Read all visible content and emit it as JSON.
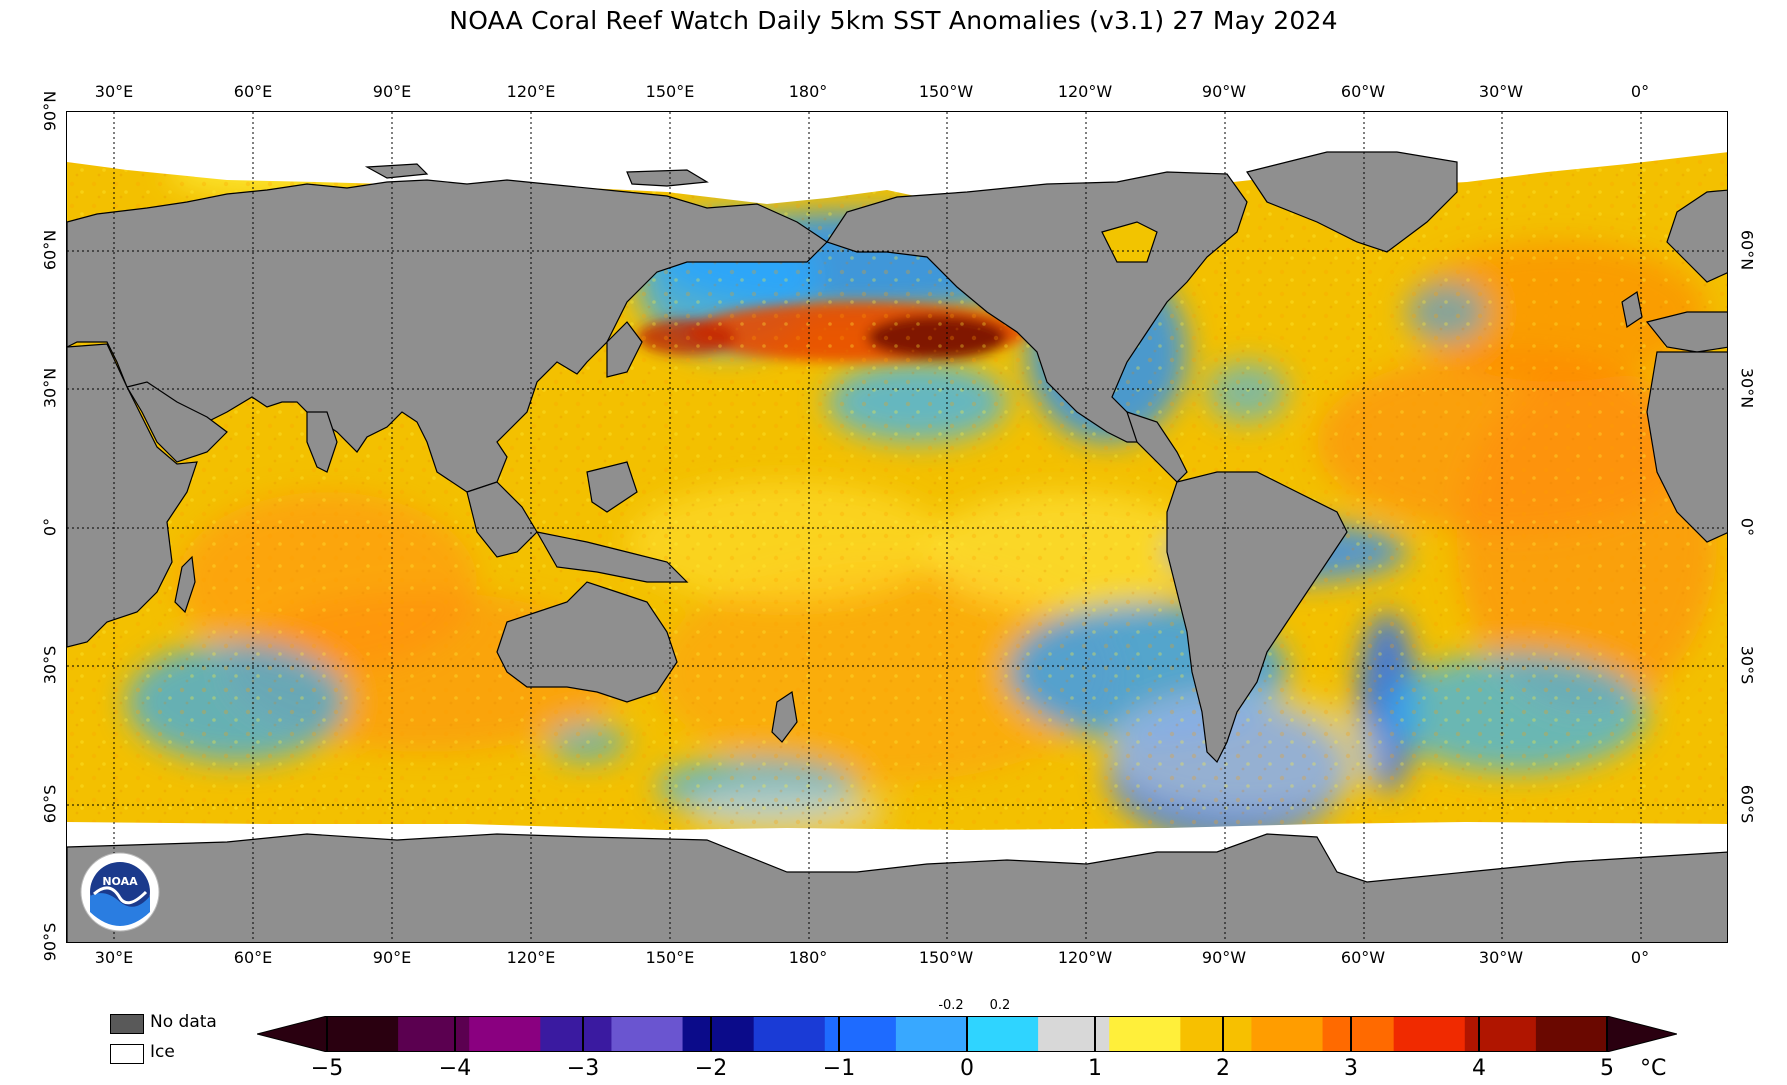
{
  "title": "NOAA Coral Reef Watch Daily 5km SST Anomalies  (v3.1)   27 May 2024",
  "lon_labels": [
    "30°E",
    "60°E",
    "90°E",
    "120°E",
    "150°E",
    "180°",
    "150°W",
    "120°W",
    "90°W",
    "60°W",
    "30°W",
    "0°"
  ],
  "lat_labels": [
    "90°N",
    "60°N",
    "30°N",
    "0°",
    "30°S",
    "60°S",
    "90°S"
  ],
  "legend": {
    "nodata": "No data",
    "ice": "Ice"
  },
  "colorbar": {
    "ticks": [
      "−5",
      "−4",
      "−3",
      "−2",
      "−1",
      "0",
      "1",
      "2",
      "3",
      "4",
      "5"
    ],
    "small_ticks": [
      "-0.2",
      "0.2"
    ],
    "unit": "°C",
    "colors": [
      "#2a0010",
      "#5b0050",
      "#8a0080",
      "#3a1aa0",
      "#6a55d0",
      "#0b0b8a",
      "#1a3bd6",
      "#1e6bff",
      "#38a8ff",
      "#2fd4ff",
      "#d8d8d8",
      "#ffef3a",
      "#f7c000",
      "#ff9d00",
      "#ff6a00",
      "#f02a00",
      "#b01500",
      "#6a0800"
    ]
  },
  "colors": {
    "land": "#8f8f8f",
    "ocean_base": "#f2c400",
    "ice": "#ffffff",
    "nodata": "#595959"
  }
}
